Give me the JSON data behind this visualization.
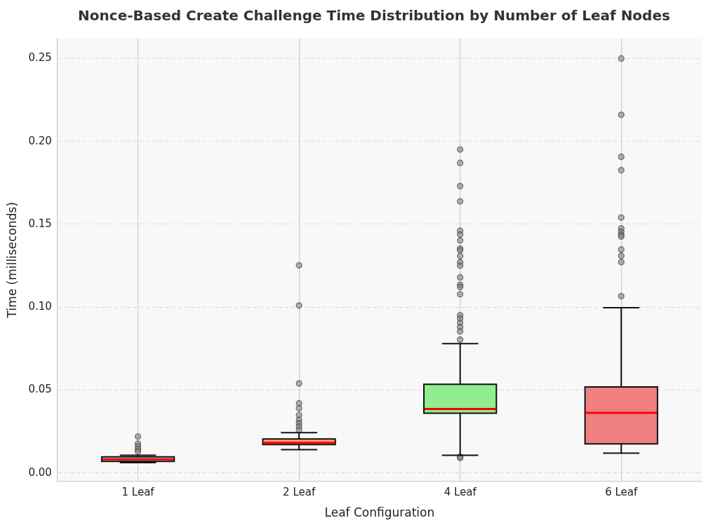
{
  "chart_data": {
    "type": "box",
    "title": "Nonce-Based Create Challenge Time Distribution by Number of Leaf Nodes",
    "xlabel": "Leaf Configuration",
    "ylabel": "Time (milliseconds)",
    "categories": [
      "1 Leaf",
      "2 Leaf",
      "4 Leaf",
      "6 Leaf"
    ],
    "colors": [
      "#add8e6",
      "#ffa07a",
      "#90ee90",
      "#f08080"
    ],
    "boxes": [
      {
        "low": 0.0062,
        "q1": 0.007,
        "median": 0.0083,
        "q3": 0.0097,
        "high": 0.0107,
        "outliers": [
          0.022,
          0.0177,
          0.016,
          0.0143,
          0.0129
        ]
      },
      {
        "low": 0.0141,
        "q1": 0.0171,
        "median": 0.0182,
        "q3": 0.0205,
        "high": 0.0243,
        "outliers": [
          0.1252,
          0.101,
          0.054,
          0.042,
          0.039,
          0.035,
          0.032,
          0.03,
          0.028,
          0.026
        ]
      },
      {
        "low": 0.0107,
        "q1": 0.0361,
        "median": 0.0386,
        "q3": 0.0535,
        "high": 0.078,
        "outliers": [
          0.1951,
          0.187,
          0.173,
          0.1638,
          0.1461,
          0.1438,
          0.1403,
          0.1354,
          0.1343,
          0.1308,
          0.1271,
          0.125,
          0.118,
          0.1135,
          0.1121,
          0.1078,
          0.0951,
          0.0931,
          0.0906,
          0.0879,
          0.0854,
          0.0804,
          0.0097,
          0.009
        ]
      },
      {
        "low": 0.0119,
        "q1": 0.0176,
        "median": 0.0363,
        "q3": 0.0519,
        "high": 0.0997,
        "outliers": [
          0.25,
          0.216,
          0.1907,
          0.1826,
          0.1541,
          0.1475,
          0.1455,
          0.1437,
          0.1426,
          0.1348,
          0.131,
          0.1272,
          0.1066
        ]
      }
    ],
    "ylim": [
      -0.005,
      0.262
    ],
    "yticks": [
      {
        "value": 0,
        "label": "0.00"
      },
      {
        "value": 0.05,
        "label": "0.05"
      },
      {
        "value": 0.1,
        "label": "0.10"
      },
      {
        "value": 0.15,
        "label": "0.15"
      },
      {
        "value": 0.2,
        "label": "0.20"
      },
      {
        "value": 0.25,
        "label": "0.25"
      }
    ],
    "grid": true,
    "legend": false
  }
}
